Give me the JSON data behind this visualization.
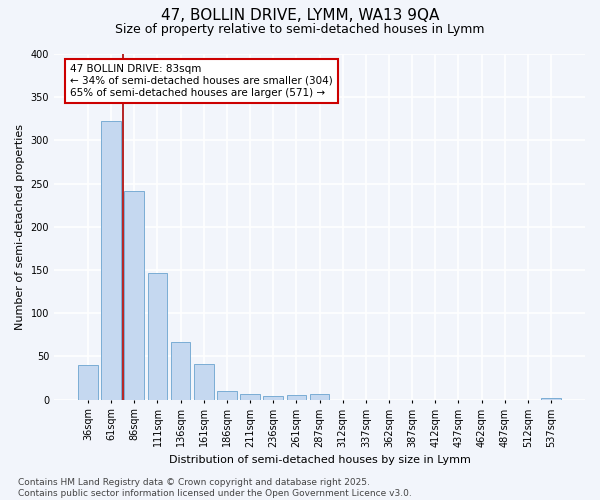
{
  "title": "47, BOLLIN DRIVE, LYMM, WA13 9QA",
  "subtitle": "Size of property relative to semi-detached houses in Lymm",
  "xlabel": "Distribution of semi-detached houses by size in Lymm",
  "ylabel": "Number of semi-detached properties",
  "categories": [
    "36sqm",
    "61sqm",
    "86sqm",
    "111sqm",
    "136sqm",
    "161sqm",
    "186sqm",
    "211sqm",
    "236sqm",
    "261sqm",
    "287sqm",
    "312sqm",
    "337sqm",
    "362sqm",
    "387sqm",
    "412sqm",
    "437sqm",
    "462sqm",
    "487sqm",
    "512sqm",
    "537sqm"
  ],
  "values": [
    40,
    322,
    242,
    147,
    67,
    41,
    10,
    7,
    4,
    5,
    6,
    0,
    0,
    0,
    0,
    0,
    0,
    0,
    0,
    0,
    2
  ],
  "bar_color": "#c5d8f0",
  "bar_edge_color": "#7aadd4",
  "vline_color": "#aa0000",
  "annotation_text": "47 BOLLIN DRIVE: 83sqm\n← 34% of semi-detached houses are smaller (304)\n65% of semi-detached houses are larger (571) →",
  "annotation_box_facecolor": "#ffffff",
  "annotation_box_edgecolor": "#cc0000",
  "ylim": [
    0,
    400
  ],
  "yticks": [
    0,
    50,
    100,
    150,
    200,
    250,
    300,
    350,
    400
  ],
  "footer": "Contains HM Land Registry data © Crown copyright and database right 2025.\nContains public sector information licensed under the Open Government Licence v3.0.",
  "bg_color": "#f2f5fb",
  "grid_color": "#ffffff",
  "title_fontsize": 11,
  "subtitle_fontsize": 9,
  "axis_label_fontsize": 8,
  "tick_fontsize": 7,
  "annotation_fontsize": 7.5,
  "footer_fontsize": 6.5
}
